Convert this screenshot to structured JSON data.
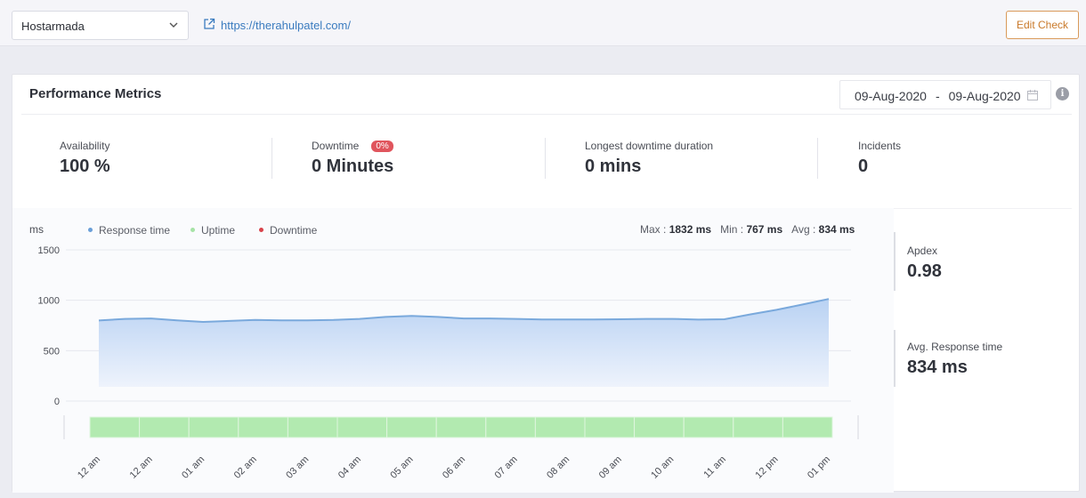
{
  "topbar": {
    "site_select": "Hostarmada",
    "url": "https://therahulpatel.com/",
    "edit_label": "Edit Check"
  },
  "card": {
    "title": "Performance Metrics",
    "date_from": "09-Aug-2020",
    "date_sep": "-",
    "date_to": "09-Aug-2020"
  },
  "metrics": [
    {
      "label": "Availability",
      "value": "100 %"
    },
    {
      "label": "Downtime",
      "value": "0 Minutes",
      "badge": "0%"
    },
    {
      "label": "Longest downtime duration",
      "value": "0 mins"
    },
    {
      "label": "Incidents",
      "value": "0"
    }
  ],
  "legend": [
    {
      "label": "Response time",
      "color": "#6a9fd8"
    },
    {
      "label": "Uptime",
      "color": "#a6e3a6"
    },
    {
      "label": "Downtime",
      "color": "#d9434b"
    }
  ],
  "stats": {
    "max_label": "Max :",
    "max_value": "1832 ms",
    "min_label": "Min :",
    "min_value": "767 ms",
    "avg_label": "Avg :",
    "avg_value": "834 ms"
  },
  "side": {
    "apdex_label": "Apdex",
    "apdex_value": "0.98",
    "avg_label": "Avg. Response time",
    "avg_value": "834 ms"
  },
  "colors": {
    "line": "#7aa9dc",
    "fill_top": "#b9d2f3",
    "fill_bottom": "#eef3fc",
    "uptime": "#b2eab0",
    "badge": "#e0555d"
  },
  "chart_data": {
    "type": "area",
    "ylabel": "ms",
    "y_ticks": [
      1500,
      1000,
      500,
      0
    ],
    "ylim": [
      0,
      1500
    ],
    "x": [
      "12 am",
      "12 am",
      "01 am",
      "02 am",
      "03 am",
      "04 am",
      "05 am",
      "06 am",
      "07 am",
      "08 am",
      "09 am",
      "10 am",
      "11 am",
      "12 pm",
      "01 pm"
    ],
    "series": [
      {
        "name": "Response time",
        "x": [
          0,
          0.5,
          1,
          1.5,
          2,
          2.5,
          3,
          3.5,
          4,
          4.5,
          5,
          5.5,
          6,
          6.5,
          7,
          7.5,
          8,
          8.5,
          9,
          9.5,
          10,
          10.5,
          11,
          11.5,
          12,
          12.5,
          13,
          13.5,
          14
        ],
        "values": [
          800,
          815,
          820,
          800,
          785,
          795,
          805,
          800,
          800,
          805,
          815,
          835,
          845,
          835,
          820,
          820,
          815,
          810,
          810,
          810,
          812,
          815,
          815,
          808,
          812,
          860,
          905,
          958,
          1013
        ]
      }
    ],
    "uptime": {
      "segments": 15,
      "status": "up"
    },
    "grid": true
  }
}
